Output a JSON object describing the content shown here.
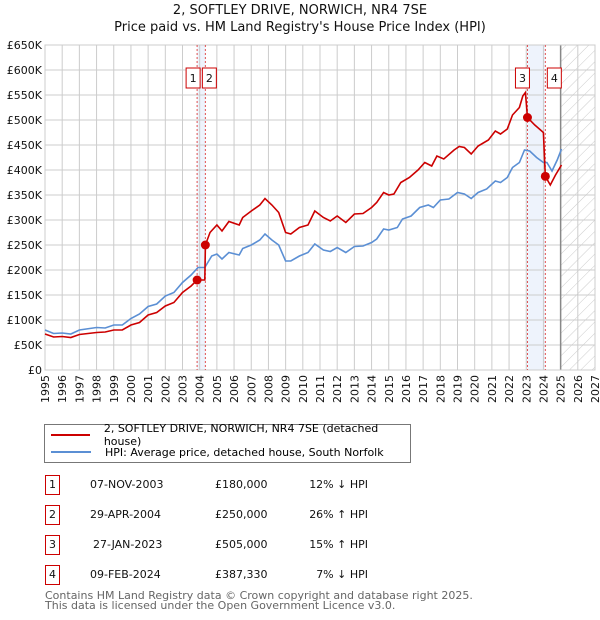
{
  "header": {
    "title": "2, SOFTLEY DRIVE, NORWICH, NR4 7SE",
    "subtitle": "Price paid vs. HM Land Registry's House Price Index (HPI)"
  },
  "chart_data": {
    "type": "line",
    "title": "2, SOFTLEY DRIVE, NORWICH, NR4 7SE",
    "subtitle": "Price paid vs. HM Land Registry's House Price Index (HPI)",
    "xlim": [
      1995,
      2027
    ],
    "ylim": [
      0,
      650000
    ],
    "x_ticks": [
      "1995",
      "1996",
      "1997",
      "1998",
      "1999",
      "2000",
      "2001",
      "2002",
      "2003",
      "2004",
      "2005",
      "2006",
      "2007",
      "2008",
      "2009",
      "2010",
      "2011",
      "2012",
      "2013",
      "2014",
      "2015",
      "2016",
      "2017",
      "2018",
      "2019",
      "2020",
      "2021",
      "2022",
      "2023",
      "2024",
      "2025",
      "2026",
      "2027"
    ],
    "y_ticks": [
      {
        "v": 0,
        "label": "£0"
      },
      {
        "v": 50000,
        "label": "£50K"
      },
      {
        "v": 100000,
        "label": "£100K"
      },
      {
        "v": 150000,
        "label": "£150K"
      },
      {
        "v": 200000,
        "label": "£200K"
      },
      {
        "v": 250000,
        "label": "£250K"
      },
      {
        "v": 300000,
        "label": "£300K"
      },
      {
        "v": 350000,
        "label": "£350K"
      },
      {
        "v": 400000,
        "label": "£400K"
      },
      {
        "v": 450000,
        "label": "£450K"
      },
      {
        "v": 500000,
        "label": "£500K"
      },
      {
        "v": 550000,
        "label": "£550K"
      },
      {
        "v": 600000,
        "label": "£600K"
      },
      {
        "v": 650000,
        "label": "£650K"
      }
    ],
    "grid": true,
    "forecast_start": 2025.0,
    "highlight_ranges": [
      [
        2003.85,
        2004.33
      ],
      [
        2023.07,
        2024.11
      ]
    ],
    "series": [
      {
        "name": "2, SOFTLEY DRIVE, NORWICH, NR4 7SE (detached house)",
        "color": "#cc0000",
        "x": [
          1995,
          1995.5,
          1996,
          1996.5,
          1997,
          1998,
          1998.5,
          1999,
          1999.5,
          2000,
          2000.5,
          2001,
          2001.5,
          2002,
          2002.5,
          2003,
          2003.5,
          2003.85,
          2004.3,
          2004.33,
          2004.6,
          2005,
          2005.3,
          2005.7,
          2006.3,
          2006.5,
          2007,
          2007.5,
          2007.8,
          2008.2,
          2008.6,
          2009,
          2009.3,
          2009.8,
          2010.3,
          2010.7,
          2011.2,
          2011.6,
          2012,
          2012.5,
          2013,
          2013.5,
          2014,
          2014.3,
          2014.7,
          2015,
          2015.3,
          2015.7,
          2016.2,
          2016.7,
          2017.1,
          2017.5,
          2017.8,
          2018.2,
          2018.8,
          2019.1,
          2019.4,
          2019.8,
          2020.2,
          2020.8,
          2021.2,
          2021.5,
          2021.9,
          2022.2,
          2022.6,
          2022.8,
          2022.95,
          2023.07,
          2023.5,
          2024.0,
          2024.11,
          2024.4,
          2024.7,
          2025.05
        ],
        "y": [
          72000,
          66000,
          67000,
          65000,
          71000,
          75000,
          76000,
          80000,
          80000,
          90000,
          95000,
          110000,
          115000,
          128000,
          135000,
          155000,
          168000,
          180000,
          180000,
          250000,
          275000,
          290000,
          278000,
          297000,
          290000,
          305000,
          318000,
          330000,
          343000,
          330000,
          315000,
          275000,
          272000,
          285000,
          290000,
          318000,
          305000,
          298000,
          308000,
          295000,
          312000,
          313000,
          325000,
          335000,
          355000,
          350000,
          352000,
          375000,
          385000,
          400000,
          415000,
          408000,
          428000,
          422000,
          440000,
          447000,
          445000,
          432000,
          448000,
          460000,
          478000,
          472000,
          482000,
          510000,
          525000,
          548000,
          555000,
          505000,
          490000,
          475000,
          387330,
          370000,
          390000,
          410000
        ]
      },
      {
        "name": "HPI: Average price, detached house, South Norfolk",
        "color": "#5b8fd4",
        "x": [
          1995,
          1995.5,
          1996,
          1996.5,
          1997,
          1998,
          1998.5,
          1999,
          1999.5,
          2000,
          2000.5,
          2001,
          2001.5,
          2002,
          2002.5,
          2003,
          2003.5,
          2003.9,
          2004.3,
          2004.7,
          2005,
          2005.3,
          2005.7,
          2006.3,
          2006.5,
          2007,
          2007.5,
          2007.8,
          2008.2,
          2008.6,
          2009,
          2009.3,
          2009.8,
          2010.3,
          2010.7,
          2011.2,
          2011.6,
          2012,
          2012.5,
          2013,
          2013.5,
          2014,
          2014.3,
          2014.7,
          2015,
          2015.5,
          2015.8,
          2016.3,
          2016.8,
          2017.3,
          2017.6,
          2018,
          2018.5,
          2019,
          2019.4,
          2019.8,
          2020.2,
          2020.7,
          2021.2,
          2021.5,
          2021.9,
          2022.2,
          2022.6,
          2022.9,
          2023.2,
          2023.6,
          2024,
          2024.2,
          2024.5,
          2024.8,
          2025.05
        ],
        "y": [
          80000,
          73000,
          74000,
          72000,
          80000,
          85000,
          84000,
          90000,
          90000,
          103000,
          112000,
          127000,
          132000,
          148000,
          155000,
          175000,
          190000,
          205000,
          205000,
          228000,
          232000,
          222000,
          235000,
          230000,
          243000,
          250000,
          260000,
          272000,
          260000,
          250000,
          218000,
          218000,
          228000,
          235000,
          252000,
          240000,
          237000,
          245000,
          235000,
          247000,
          248000,
          255000,
          262000,
          282000,
          280000,
          285000,
          302000,
          308000,
          325000,
          330000,
          325000,
          340000,
          342000,
          355000,
          352000,
          343000,
          355000,
          362000,
          378000,
          375000,
          385000,
          405000,
          415000,
          440000,
          438000,
          425000,
          415000,
          415000,
          398000,
          420000,
          442000
        ]
      }
    ],
    "sales": [
      {
        "id": "1",
        "x": 2003.85,
        "y": 180000
      },
      {
        "id": "2",
        "x": 2004.33,
        "y": 250000
      },
      {
        "id": "3",
        "x": 2023.07,
        "y": 505000
      },
      {
        "id": "4",
        "x": 2024.11,
        "y": 387330
      }
    ]
  },
  "legend": {
    "items": [
      {
        "label": "2, SOFTLEY DRIVE, NORWICH, NR4 7SE (detached house)",
        "color": "#cc0000"
      },
      {
        "label": "HPI: Average price, detached house, South Norfolk",
        "color": "#5b8fd4"
      }
    ]
  },
  "transactions": [
    {
      "id": "1",
      "date": "07-NOV-2003",
      "price": "£180,000",
      "hpi": "12% ↓ HPI"
    },
    {
      "id": "2",
      "date": "29-APR-2004",
      "price": "£250,000",
      "hpi": "26% ↑ HPI"
    },
    {
      "id": "3",
      "date": "27-JAN-2023",
      "price": "£505,000",
      "hpi": "15% ↑ HPI"
    },
    {
      "id": "4",
      "date": "09-FEB-2024",
      "price": "£387,330",
      "hpi": "7% ↓ HPI"
    }
  ],
  "footer": {
    "line1": "Contains HM Land Registry data © Crown copyright and database right 2025.",
    "line2": "This data is licensed under the Open Government Licence v3.0."
  }
}
